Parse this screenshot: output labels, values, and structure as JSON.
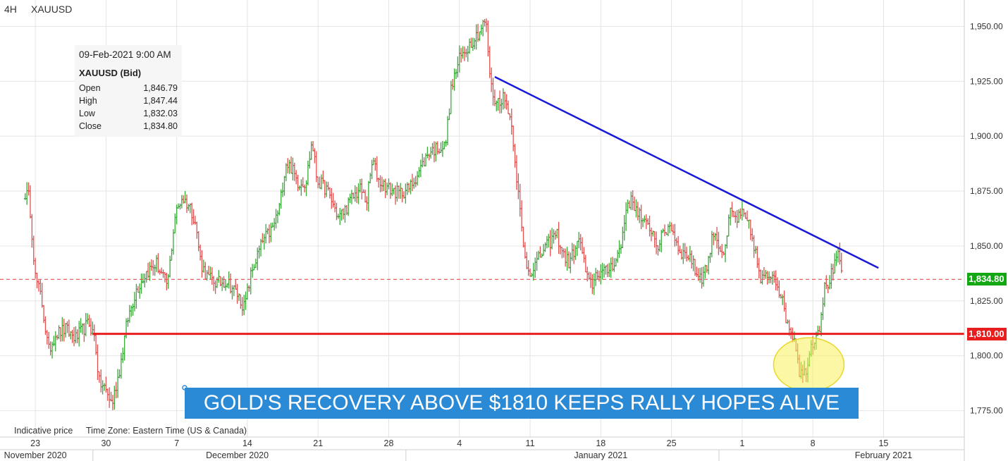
{
  "header": {
    "timeframe": "4H",
    "symbol": "XAUUSD"
  },
  "info_box": {
    "date": "09-Feb-2021 9:00 AM",
    "symbol_label": "XAUUSD (Bid)",
    "rows": [
      {
        "label": "Open",
        "value": "1,846.79"
      },
      {
        "label": "High",
        "value": "1,847.44"
      },
      {
        "label": "Low",
        "value": "1,832.03"
      },
      {
        "label": "Close",
        "value": "1,834.80"
      }
    ]
  },
  "footer": {
    "indicative": "Indicative price",
    "timezone": "Time Zone: Eastern Time (US & Canada)"
  },
  "headline": "GOLD'S RECOVERY ABOVE $1810 KEEPS RALLY HOPES ALIVE",
  "colors": {
    "up": "#3aa93a",
    "down": "#e0504f",
    "trendline": "#1a1ad6",
    "support": "#e81e1e",
    "grid": "#e4e4e4",
    "highlight": "#f7f05a",
    "headline_bg": "#2b8ad6",
    "current_badge": "#13a813",
    "support_badge": "#e81e1e"
  },
  "chart_data": {
    "type": "ohlc",
    "ylim": [
      1763,
      1962
    ],
    "y_ticks": [
      {
        "value": 1775,
        "label": "1,775.00"
      },
      {
        "value": 1800,
        "label": "1,800.00"
      },
      {
        "value": 1825,
        "label": "1,825.00"
      },
      {
        "value": 1850,
        "label": "1,850.00"
      },
      {
        "value": 1875,
        "label": "1,875.00"
      },
      {
        "value": 1900,
        "label": "1,900.00"
      },
      {
        "value": 1925,
        "label": "1,925.00"
      },
      {
        "value": 1950,
        "label": "1,950.00"
      }
    ],
    "x_ticks": [
      {
        "day": 23,
        "label": "23"
      },
      {
        "day": 30,
        "label": "30"
      },
      {
        "day": 37,
        "label": "7"
      },
      {
        "day": 44,
        "label": "14"
      },
      {
        "day": 51,
        "label": "21"
      },
      {
        "day": 58,
        "label": "28"
      },
      {
        "day": 65,
        "label": "4"
      },
      {
        "day": 72,
        "label": "11"
      },
      {
        "day": 79,
        "label": "18"
      },
      {
        "day": 86,
        "label": "25"
      },
      {
        "day": 93,
        "label": "1"
      },
      {
        "day": 100,
        "label": "8"
      },
      {
        "day": 107,
        "label": "15"
      }
    ],
    "months": [
      {
        "day": 23,
        "label": "November 2020"
      },
      {
        "day": 43,
        "label": "December 2020"
      },
      {
        "day": 79,
        "label": "January 2021"
      },
      {
        "day": 107,
        "label": "February 2021"
      }
    ],
    "current_price": {
      "value": 1834.8,
      "label": "1,834.80"
    },
    "support": {
      "value": 1810,
      "label": "1,810.00",
      "from_day": 28.7
    },
    "trendline": {
      "from": {
        "day": 68.5,
        "value": 1927
      },
      "to": {
        "day": 106.5,
        "value": 1840
      }
    },
    "highlight_circle": {
      "day": 99.6,
      "value": 1796
    },
    "anchors": [
      {
        "day": 22.0,
        "value": 1874
      },
      {
        "day": 22.4,
        "value": 1872
      },
      {
        "day": 23.0,
        "value": 1836
      },
      {
        "day": 23.6,
        "value": 1826
      },
      {
        "day": 24.3,
        "value": 1802
      },
      {
        "day": 25.0,
        "value": 1810
      },
      {
        "day": 26.0,
        "value": 1812
      },
      {
        "day": 27.0,
        "value": 1808
      },
      {
        "day": 28.3,
        "value": 1815
      },
      {
        "day": 28.9,
        "value": 1808
      },
      {
        "day": 29.3,
        "value": 1788
      },
      {
        "day": 29.9,
        "value": 1785
      },
      {
        "day": 30.6,
        "value": 1778
      },
      {
        "day": 31.4,
        "value": 1795
      },
      {
        "day": 32.1,
        "value": 1816
      },
      {
        "day": 33.0,
        "value": 1830
      },
      {
        "day": 34.0,
        "value": 1838
      },
      {
        "day": 35.0,
        "value": 1842
      },
      {
        "day": 35.6,
        "value": 1836
      },
      {
        "day": 36.1,
        "value": 1832
      },
      {
        "day": 36.8,
        "value": 1863
      },
      {
        "day": 37.5,
        "value": 1872
      },
      {
        "day": 38.3,
        "value": 1868
      },
      {
        "day": 38.8,
        "value": 1862
      },
      {
        "day": 39.4,
        "value": 1842
      },
      {
        "day": 40.0,
        "value": 1836
      },
      {
        "day": 41.0,
        "value": 1833
      },
      {
        "day": 42.0,
        "value": 1834
      },
      {
        "day": 43.0,
        "value": 1828
      },
      {
        "day": 43.7,
        "value": 1822
      },
      {
        "day": 44.4,
        "value": 1838
      },
      {
        "day": 45.5,
        "value": 1852
      },
      {
        "day": 46.5,
        "value": 1858
      },
      {
        "day": 47.2,
        "value": 1868
      },
      {
        "day": 47.8,
        "value": 1888
      },
      {
        "day": 48.3,
        "value": 1886
      },
      {
        "day": 49.0,
        "value": 1879
      },
      {
        "day": 49.8,
        "value": 1879
      },
      {
        "day": 50.4,
        "value": 1898
      },
      {
        "day": 50.9,
        "value": 1880
      },
      {
        "day": 51.3,
        "value": 1878
      },
      {
        "day": 51.8,
        "value": 1876
      },
      {
        "day": 52.4,
        "value": 1870
      },
      {
        "day": 53.0,
        "value": 1863
      },
      {
        "day": 53.6,
        "value": 1866
      },
      {
        "day": 54.4,
        "value": 1872
      },
      {
        "day": 55.2,
        "value": 1876
      },
      {
        "day": 55.8,
        "value": 1870
      },
      {
        "day": 56.4,
        "value": 1889
      },
      {
        "day": 57.0,
        "value": 1880
      },
      {
        "day": 58.0,
        "value": 1876
      },
      {
        "day": 59.0,
        "value": 1874
      },
      {
        "day": 60.0,
        "value": 1876
      },
      {
        "day": 61.0,
        "value": 1884
      },
      {
        "day": 62.0,
        "value": 1893
      },
      {
        "day": 63.0,
        "value": 1895
      },
      {
        "day": 63.6,
        "value": 1895
      },
      {
        "day": 64.2,
        "value": 1922
      },
      {
        "day": 65.0,
        "value": 1935
      },
      {
        "day": 66.0,
        "value": 1942
      },
      {
        "day": 67.0,
        "value": 1948
      },
      {
        "day": 67.6,
        "value": 1953
      },
      {
        "day": 68.1,
        "value": 1923
      },
      {
        "day": 68.6,
        "value": 1915
      },
      {
        "day": 69.3,
        "value": 1918
      },
      {
        "day": 69.9,
        "value": 1912
      },
      {
        "day": 70.3,
        "value": 1900
      },
      {
        "day": 70.8,
        "value": 1875
      },
      {
        "day": 71.4,
        "value": 1846
      },
      {
        "day": 71.9,
        "value": 1838
      },
      {
        "day": 72.6,
        "value": 1842
      },
      {
        "day": 73.3,
        "value": 1848
      },
      {
        "day": 74.0,
        "value": 1852
      },
      {
        "day": 74.6,
        "value": 1856
      },
      {
        "day": 75.3,
        "value": 1846
      },
      {
        "day": 75.9,
        "value": 1842
      },
      {
        "day": 76.5,
        "value": 1850
      },
      {
        "day": 77.0,
        "value": 1852
      },
      {
        "day": 77.6,
        "value": 1835
      },
      {
        "day": 78.1,
        "value": 1832
      },
      {
        "day": 78.6,
        "value": 1838
      },
      {
        "day": 79.5,
        "value": 1838
      },
      {
        "day": 80.5,
        "value": 1844
      },
      {
        "day": 81.0,
        "value": 1850
      },
      {
        "day": 81.6,
        "value": 1870
      },
      {
        "day": 82.1,
        "value": 1870
      },
      {
        "day": 82.7,
        "value": 1866
      },
      {
        "day": 83.2,
        "value": 1860
      },
      {
        "day": 84.0,
        "value": 1858
      },
      {
        "day": 84.6,
        "value": 1850
      },
      {
        "day": 85.3,
        "value": 1856
      },
      {
        "day": 85.9,
        "value": 1860
      },
      {
        "day": 86.6,
        "value": 1850
      },
      {
        "day": 87.2,
        "value": 1846
      },
      {
        "day": 87.8,
        "value": 1846
      },
      {
        "day": 88.4,
        "value": 1838
      },
      {
        "day": 89.0,
        "value": 1836
      },
      {
        "day": 89.6,
        "value": 1842
      },
      {
        "day": 90.2,
        "value": 1858
      },
      {
        "day": 90.7,
        "value": 1850
      },
      {
        "day": 91.3,
        "value": 1846
      },
      {
        "day": 91.8,
        "value": 1866
      },
      {
        "day": 92.4,
        "value": 1862
      },
      {
        "day": 93.0,
        "value": 1864
      },
      {
        "day": 93.6,
        "value": 1860
      },
      {
        "day": 94.2,
        "value": 1850
      },
      {
        "day": 94.8,
        "value": 1834
      },
      {
        "day": 95.5,
        "value": 1836
      },
      {
        "day": 96.1,
        "value": 1838
      },
      {
        "day": 96.7,
        "value": 1830
      },
      {
        "day": 97.3,
        "value": 1818
      },
      {
        "day": 97.8,
        "value": 1812
      },
      {
        "day": 98.3,
        "value": 1806
      },
      {
        "day": 98.7,
        "value": 1792
      },
      {
        "day": 99.2,
        "value": 1792
      },
      {
        "day": 99.8,
        "value": 1804
      },
      {
        "day": 100.3,
        "value": 1810
      },
      {
        "day": 100.7,
        "value": 1814
      },
      {
        "day": 101.1,
        "value": 1830
      },
      {
        "day": 101.6,
        "value": 1834
      },
      {
        "day": 102.1,
        "value": 1840
      },
      {
        "day": 102.6,
        "value": 1846
      },
      {
        "day": 102.9,
        "value": 1835
      }
    ]
  }
}
